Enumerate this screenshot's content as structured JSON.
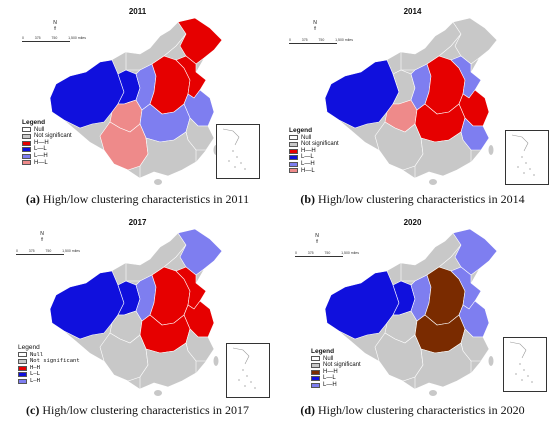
{
  "colors": {
    "null": "#ffffff",
    "not_significant": "#c8c8c8",
    "hh": "#e60000",
    "hh_2020": "#7a2b00",
    "ll": "#1010dd",
    "lh": "#7e7ef0",
    "hl": "#ee8a8a",
    "border": "#ffffff"
  },
  "panels": [
    {
      "year": "2011",
      "caption_letter": "(a)",
      "caption_text": "High/low clustering characteristics in 2011",
      "scale_ticks": [
        "0",
        "375",
        "750",
        "",
        "1,500 miles"
      ],
      "north": "N",
      "legend": {
        "title": "Legend",
        "items": [
          {
            "label": "Null",
            "color": "#ffffff"
          },
          {
            "label": "Not significant",
            "color": "#c8c8c8"
          },
          {
            "label": "H—H",
            "color": "#e60000"
          },
          {
            "label": "L—L",
            "color": "#1010dd"
          },
          {
            "label": "L—H",
            "color": "#7e7ef0"
          },
          {
            "label": "H—L",
            "color": "#ee8a8a"
          }
        ]
      }
    },
    {
      "year": "2014",
      "caption_letter": "(b)",
      "caption_text": "High/low clustering characteristics in 2014",
      "scale_ticks": [
        "0",
        "375",
        "750",
        "",
        "1,500 miles"
      ],
      "north": "N",
      "legend": {
        "title": "Legend",
        "items": [
          {
            "label": "Null",
            "color": "#ffffff"
          },
          {
            "label": "Not significant",
            "color": "#c8c8c8"
          },
          {
            "label": "H—H",
            "color": "#e60000"
          },
          {
            "label": "L—L",
            "color": "#1010dd"
          },
          {
            "label": "L—H",
            "color": "#7e7ef0"
          },
          {
            "label": "H—L",
            "color": "#ee8a8a"
          }
        ]
      }
    },
    {
      "year": "2017",
      "caption_letter": "(c)",
      "caption_text": "High/low clustering characteristics in 2017",
      "scale_ticks": [
        "0",
        "375",
        "750",
        "",
        "1,500 miles"
      ],
      "north": "N",
      "legend": {
        "title": "Legend",
        "items": [
          {
            "label": "Null",
            "color": "#ffffff"
          },
          {
            "label": "Not significant",
            "color": "#c8c8c8"
          },
          {
            "label": "H—H",
            "color": "#e60000"
          },
          {
            "label": "L—L",
            "color": "#1010dd"
          },
          {
            "label": "L—H",
            "color": "#7e7ef0"
          }
        ]
      }
    },
    {
      "year": "2020",
      "caption_letter": "(d)",
      "caption_text": "High/low clustering characteristics in 2020",
      "scale_ticks": [
        "0",
        "375",
        "750",
        "",
        "1,500 miles"
      ],
      "north": "N",
      "legend": {
        "title": "Legend",
        "items": [
          {
            "label": "Null",
            "color": "#ffffff"
          },
          {
            "label": "Not significant",
            "color": "#c8c8c8"
          },
          {
            "label": "H—H",
            "color": "#7a2b00"
          },
          {
            "label": "L—L",
            "color": "#1010dd"
          },
          {
            "label": "L—H",
            "color": "#7e7ef0"
          }
        ]
      }
    }
  ]
}
